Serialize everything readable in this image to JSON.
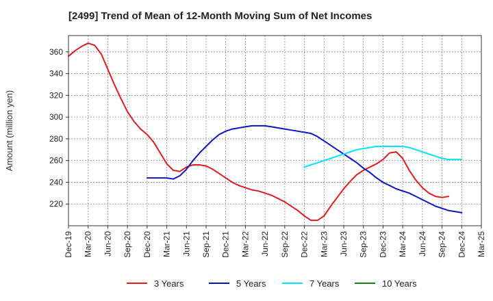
{
  "chart_data": {
    "type": "line",
    "title": "[2499]  Trend of Mean of 12-Month Moving Sum of Net Incomes",
    "ylabel": "Amount (million yen)",
    "xlabel": "",
    "ylim": [
      200,
      375
    ],
    "yticks": [
      220,
      240,
      260,
      280,
      300,
      320,
      340,
      360
    ],
    "xticks": [
      "Dec-19",
      "Mar-20",
      "Jun-20",
      "Sep-20",
      "Dec-20",
      "Mar-21",
      "Jun-21",
      "Sep-21",
      "Dec-21",
      "Mar-22",
      "Jun-22",
      "Sep-22",
      "Dec-22",
      "Mar-23",
      "Jun-23",
      "Sep-23",
      "Dec-23",
      "Mar-24",
      "Jun-24",
      "Sep-24",
      "Dec-24",
      "Mar-25"
    ],
    "grid": true,
    "legend_position": "bottom",
    "series": [
      {
        "name": "3 Years",
        "color": "#e31a1c",
        "start": 0,
        "values": [
          356,
          361,
          365,
          368,
          366,
          358,
          344,
          330,
          317,
          305,
          296,
          289,
          284,
          277,
          267,
          257,
          251,
          250,
          254,
          256,
          256,
          255,
          252,
          248,
          244,
          240,
          237,
          235,
          233,
          232,
          230,
          228,
          225,
          222,
          218,
          214,
          209,
          205,
          205,
          209,
          218,
          226,
          234,
          241,
          247,
          251,
          254,
          257,
          261,
          267,
          268,
          262,
          251,
          242,
          235,
          230,
          227,
          226,
          227
        ]
      },
      {
        "name": "5 Years",
        "color": "#0a14c8",
        "start": 12,
        "values": [
          244,
          244,
          244,
          244,
          243,
          246,
          252,
          260,
          267,
          273,
          279,
          284,
          287,
          289,
          290,
          291,
          292,
          292,
          292,
          291,
          290,
          289,
          288,
          287,
          286,
          285,
          282,
          278,
          274,
          270,
          266,
          262,
          258,
          253,
          249,
          244,
          240,
          237,
          234,
          232,
          230,
          227,
          224,
          221,
          218,
          216,
          214,
          213,
          212
        ]
      },
      {
        "name": "7 Years",
        "color": "#00e5ff",
        "start": 36,
        "values": [
          254,
          256,
          258,
          260,
          262,
          264,
          266,
          268,
          270,
          271,
          272,
          273,
          273,
          273,
          273,
          273,
          272,
          270,
          268,
          266,
          264,
          262,
          261,
          261,
          261
        ]
      },
      {
        "name": "10 Years",
        "color": "#1a7f1a",
        "start": 0,
        "values": []
      }
    ]
  }
}
